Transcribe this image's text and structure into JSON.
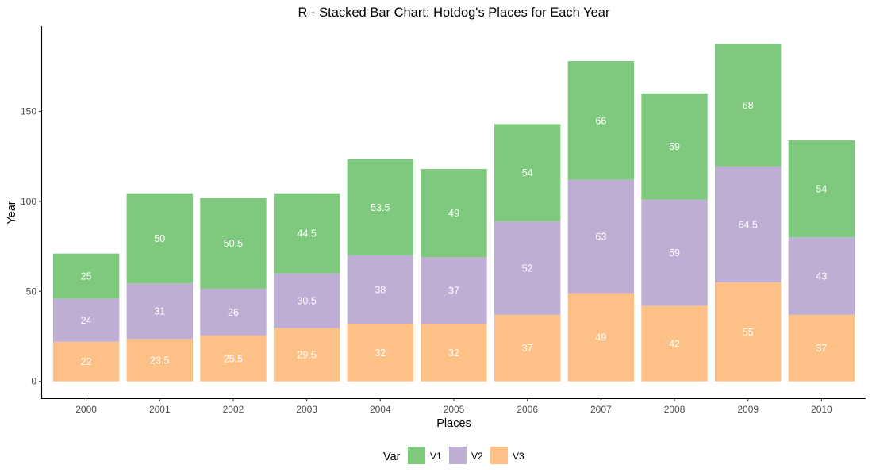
{
  "chart_data": {
    "type": "bar",
    "stacked": true,
    "title": "R - Stacked Bar Chart: Hotdog's Places for Each Year",
    "xlabel": "Places",
    "ylabel": "Year",
    "categories": [
      "2000",
      "2001",
      "2002",
      "2003",
      "2004",
      "2005",
      "2006",
      "2007",
      "2008",
      "2009",
      "2010"
    ],
    "series": [
      {
        "name": "V3",
        "color": "#FDC086",
        "values": [
          22,
          23.5,
          25.5,
          29.5,
          32,
          32,
          37,
          49,
          42,
          55,
          37
        ]
      },
      {
        "name": "V2",
        "color": "#BEAED4",
        "values": [
          24,
          31,
          26,
          30.5,
          38,
          37,
          52,
          63,
          59,
          64.5,
          43
        ]
      },
      {
        "name": "V1",
        "color": "#7FC97F",
        "values": [
          25,
          50,
          50.5,
          44.5,
          53.5,
          49,
          54,
          66,
          59,
          68,
          54
        ]
      }
    ],
    "ylim": [
      -9.4,
      197.4
    ],
    "yticks": [
      0,
      50,
      100,
      150
    ],
    "grid": false,
    "legend": {
      "title": "Var",
      "position": "bottom",
      "items": [
        {
          "label": "V1",
          "color": "#7FC97F"
        },
        {
          "label": "V2",
          "color": "#BEAED4"
        },
        {
          "label": "V3",
          "color": "#FDC086"
        }
      ]
    }
  }
}
